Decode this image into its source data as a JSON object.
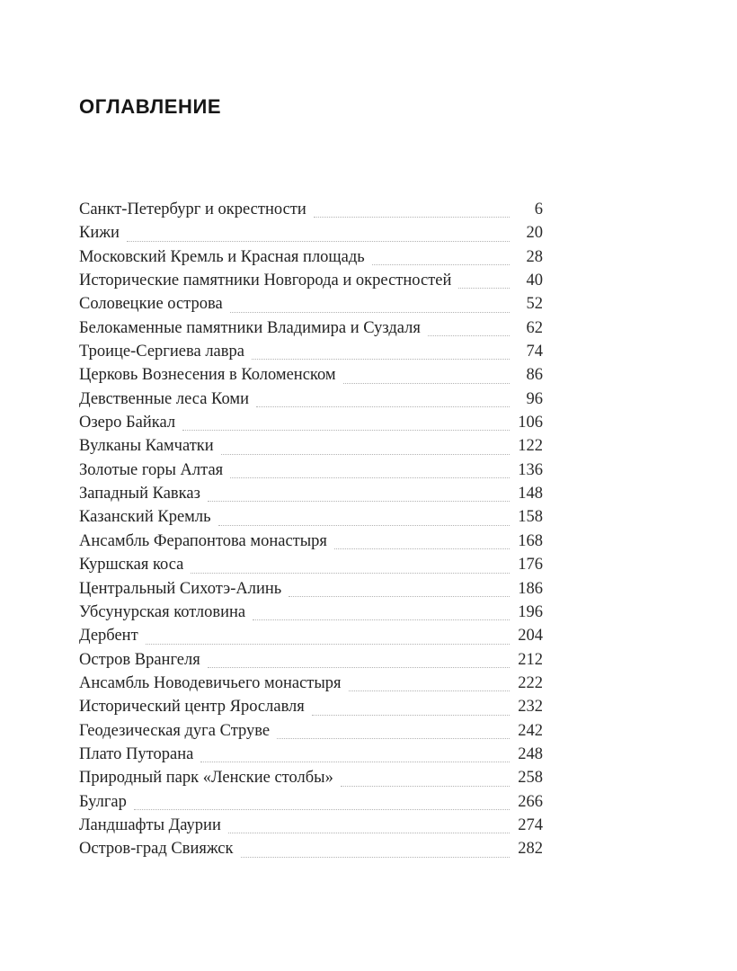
{
  "toc": {
    "title": "ОГЛАВЛЕНИЕ",
    "entries": [
      {
        "title": "Санкт-Петербург и окрестности",
        "page": "6"
      },
      {
        "title": "Кижи",
        "page": "20"
      },
      {
        "title": "Московский Кремль и Красная площадь",
        "page": "28"
      },
      {
        "title": "Исторические памятники Новгорода и окрестностей",
        "page": "40"
      },
      {
        "title": "Соловецкие острова",
        "page": "52"
      },
      {
        "title": "Белокаменные памятники Владимира и Суздаля",
        "page": "62"
      },
      {
        "title": "Троице-Сергиева лавра",
        "page": "74"
      },
      {
        "title": "Церковь Вознесения в Коломенском",
        "page": "86"
      },
      {
        "title": "Девственные леса Коми",
        "page": "96"
      },
      {
        "title": "Озеро Байкал",
        "page": "106"
      },
      {
        "title": "Вулканы Камчатки",
        "page": "122"
      },
      {
        "title": "Золотые горы Алтая",
        "page": "136"
      },
      {
        "title": "Западный Кавказ",
        "page": "148"
      },
      {
        "title": "Казанский Кремль",
        "page": "158"
      },
      {
        "title": "Ансамбль Ферапонтова монастыря",
        "page": "168"
      },
      {
        "title": "Куршская коса",
        "page": "176"
      },
      {
        "title": "Центральный Сихотэ-Алинь",
        "page": "186"
      },
      {
        "title": "Убсунурская котловина",
        "page": "196"
      },
      {
        "title": "Дербент",
        "page": "204"
      },
      {
        "title": "Остров Врангеля",
        "page": "212"
      },
      {
        "title": "Ансамбль Новодевичьего монастыря",
        "page": "222"
      },
      {
        "title": "Исторический центр Ярославля",
        "page": "232"
      },
      {
        "title": "Геодезическая дуга Струве",
        "page": "242"
      },
      {
        "title": "Плато Путорана",
        "page": "248"
      },
      {
        "title": "Природный парк «Ленские столбы»",
        "page": "258"
      },
      {
        "title": "Булгар",
        "page": "266"
      },
      {
        "title": "Ландшафты Даурии",
        "page": "274"
      },
      {
        "title": "Остров-град Свияжск",
        "page": "282"
      }
    ]
  }
}
